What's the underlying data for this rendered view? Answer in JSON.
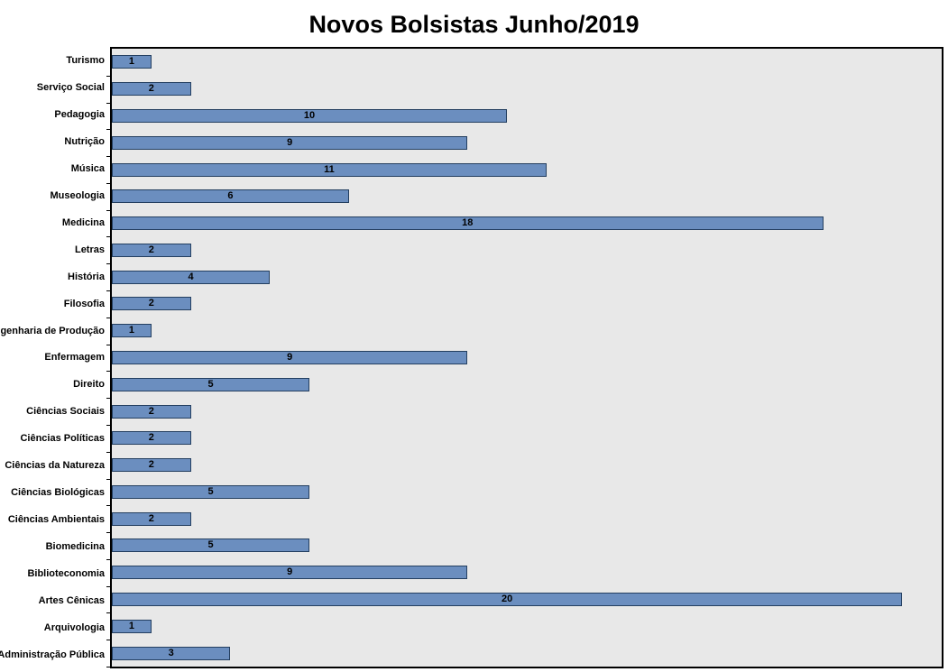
{
  "chart_data": {
    "type": "bar",
    "orientation": "horizontal",
    "title": "Novos Bolsistas Junho/2019",
    "categories": [
      "Turismo",
      "Serviço Social",
      "Pedagogia",
      "Nutrição",
      "Música",
      "Museologia",
      "Medicina",
      "Letras",
      "História",
      "Filosofia",
      "Engenharia de Produção",
      "Enfermagem",
      "Direito",
      "Ciências Sociais",
      "Ciências Políticas",
      "Ciências da Natureza",
      "Ciências Biológicas",
      "Ciências Ambientais",
      "Biomedicina",
      "Biblioteconomia",
      "Artes Cênicas",
      "Arquivologia",
      "Administração Pública"
    ],
    "values": [
      1,
      2,
      10,
      9,
      11,
      6,
      18,
      2,
      4,
      2,
      1,
      9,
      5,
      2,
      2,
      2,
      5,
      2,
      5,
      9,
      20,
      1,
      3
    ],
    "xlim": [
      0,
      21
    ],
    "data_labels": true,
    "legend": "none",
    "grid": false,
    "colors": {
      "bar_fill": "#6b8ebf",
      "bar_border": "#243f60",
      "plot_bg": "#e8e8e8",
      "axis": "#000000",
      "text": "#000000"
    }
  }
}
